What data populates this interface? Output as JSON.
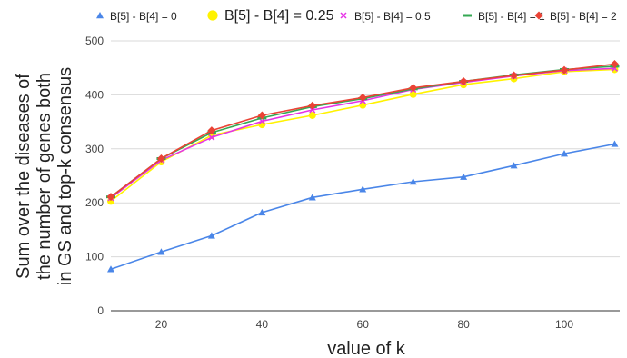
{
  "chart_data": {
    "type": "line",
    "title": "",
    "xlabel": "value of k",
    "ylabel_lines": [
      "Sum over the diseases of",
      "the number of genes both",
      "in GS and top-k consensus"
    ],
    "x": [
      10,
      20,
      30,
      40,
      50,
      60,
      70,
      80,
      90,
      100,
      110
    ],
    "xlim": [
      10,
      111
    ],
    "ylim": [
      0,
      500
    ],
    "xticks": [
      "20",
      "40",
      "60",
      "80",
      "100"
    ],
    "yticks": [
      "0",
      "100",
      "200",
      "300",
      "400",
      "500"
    ],
    "grid": "horizontal",
    "legend_position": "top",
    "series": [
      {
        "name": "B[5] - B[4] = 0",
        "color": "#4a86e8",
        "marker": "triangle",
        "values": [
          77,
          109,
          139,
          182,
          210,
          225,
          239,
          248,
          269,
          291,
          309
        ]
      },
      {
        "name": "B[5] - B[4] = 0.25",
        "color": "#fff200",
        "marker": "circle",
        "values": [
          203,
          276,
          325,
          345,
          362,
          381,
          401,
          419,
          430,
          443,
          447
        ]
      },
      {
        "name": "B[5] - B[4] = 0.5",
        "color": "#e633e6",
        "marker": "x",
        "values": [
          209,
          279,
          321,
          351,
          372,
          389,
          410,
          423,
          435,
          445,
          449
        ]
      },
      {
        "name": "B[5] - B[4] = 1",
        "color": "#34a853",
        "marker": "dash",
        "values": [
          211,
          282,
          330,
          357,
          378,
          393,
          411,
          425,
          437,
          447,
          453
        ]
      },
      {
        "name": "B[5] - B[4] = 2",
        "color": "#ea4335",
        "marker": "diamond",
        "values": [
          211,
          282,
          334,
          362,
          380,
          395,
          413,
          425,
          436,
          446,
          457
        ]
      }
    ]
  }
}
